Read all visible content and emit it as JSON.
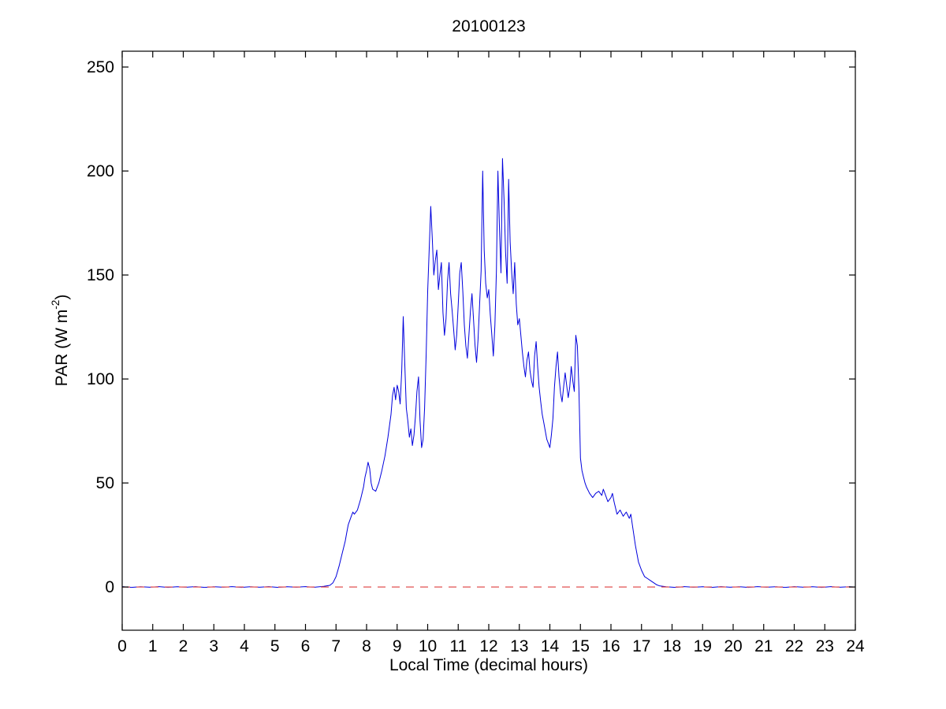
{
  "chart_data": {
    "type": "line",
    "title": "20100123",
    "xlabel": "Local Time (decimal hours)",
    "ylabel": "PAR (W m-2)",
    "ylabel_parts": {
      "pre": "PAR (W m",
      "sup": "-2",
      "post": ")"
    },
    "xlim": [
      0,
      24
    ],
    "ylim": [
      -20.8,
      257.6
    ],
    "x_ticks": [
      0,
      1,
      2,
      3,
      4,
      5,
      6,
      7,
      8,
      9,
      10,
      11,
      12,
      13,
      14,
      15,
      16,
      17,
      18,
      19,
      20,
      21,
      22,
      23,
      24
    ],
    "y_ticks": [
      0,
      50,
      100,
      150,
      200,
      250
    ],
    "grid": false,
    "legend": "none",
    "colors": {
      "par_line": "#0000dd",
      "zero_line": "#e05050",
      "axis": "#000000"
    },
    "series": [
      {
        "name": "PAR",
        "color": "#0000dd",
        "dashed": false,
        "width": 1,
        "points": [
          [
            0,
            0.2
          ],
          [
            0.3,
            -0.2
          ],
          [
            0.6,
            0.1
          ],
          [
            0.9,
            -0.1
          ],
          [
            1.2,
            0.2
          ],
          [
            1.5,
            -0.2
          ],
          [
            1.8,
            0.1
          ],
          [
            2.1,
            -0.1
          ],
          [
            2.4,
            0.2
          ],
          [
            2.7,
            -0.2
          ],
          [
            3,
            0.1
          ],
          [
            3.3,
            -0.1
          ],
          [
            3.6,
            0.2
          ],
          [
            3.9,
            -0.2
          ],
          [
            4.2,
            0.1
          ],
          [
            4.5,
            -0.1
          ],
          [
            4.8,
            0.2
          ],
          [
            5.1,
            -0.2
          ],
          [
            5.4,
            0.1
          ],
          [
            5.7,
            -0.1
          ],
          [
            6,
            0.2
          ],
          [
            6.3,
            -0.1
          ],
          [
            6.6,
            0.3
          ],
          [
            6.8,
            0.8
          ],
          [
            6.9,
            2
          ],
          [
            7,
            5
          ],
          [
            7.1,
            10
          ],
          [
            7.2,
            16
          ],
          [
            7.3,
            22
          ],
          [
            7.35,
            26
          ],
          [
            7.4,
            30
          ],
          [
            7.5,
            34
          ],
          [
            7.55,
            36
          ],
          [
            7.6,
            35
          ],
          [
            7.7,
            37
          ],
          [
            7.8,
            42
          ],
          [
            7.9,
            48
          ],
          [
            7.95,
            53
          ],
          [
            8,
            56
          ],
          [
            8.05,
            60
          ],
          [
            8.1,
            57
          ],
          [
            8.15,
            50
          ],
          [
            8.2,
            47
          ],
          [
            8.3,
            46
          ],
          [
            8.4,
            50
          ],
          [
            8.5,
            56
          ],
          [
            8.6,
            63
          ],
          [
            8.7,
            72
          ],
          [
            8.8,
            83
          ],
          [
            8.85,
            92
          ],
          [
            8.9,
            96
          ],
          [
            8.95,
            90
          ],
          [
            9,
            97
          ],
          [
            9.05,
            94
          ],
          [
            9.1,
            88
          ],
          [
            9.15,
            104
          ],
          [
            9.2,
            130
          ],
          [
            9.25,
            108
          ],
          [
            9.3,
            86
          ],
          [
            9.35,
            80
          ],
          [
            9.4,
            72
          ],
          [
            9.45,
            76
          ],
          [
            9.5,
            68
          ],
          [
            9.55,
            73
          ],
          [
            9.6,
            82
          ],
          [
            9.65,
            94
          ],
          [
            9.7,
            101
          ],
          [
            9.75,
            80
          ],
          [
            9.8,
            67
          ],
          [
            9.85,
            71
          ],
          [
            9.9,
            86
          ],
          [
            9.95,
            112
          ],
          [
            10,
            142
          ],
          [
            10.05,
            162
          ],
          [
            10.1,
            183
          ],
          [
            10.15,
            168
          ],
          [
            10.2,
            150
          ],
          [
            10.25,
            157
          ],
          [
            10.3,
            162
          ],
          [
            10.35,
            143
          ],
          [
            10.4,
            150
          ],
          [
            10.45,
            156
          ],
          [
            10.5,
            132
          ],
          [
            10.55,
            121
          ],
          [
            10.6,
            129
          ],
          [
            10.65,
            147
          ],
          [
            10.7,
            156
          ],
          [
            10.75,
            141
          ],
          [
            10.8,
            133
          ],
          [
            10.85,
            124
          ],
          [
            10.9,
            114
          ],
          [
            10.95,
            121
          ],
          [
            11,
            136
          ],
          [
            11.05,
            151
          ],
          [
            11.1,
            156
          ],
          [
            11.15,
            142
          ],
          [
            11.2,
            126
          ],
          [
            11.25,
            116
          ],
          [
            11.3,
            110
          ],
          [
            11.35,
            121
          ],
          [
            11.4,
            133
          ],
          [
            11.45,
            141
          ],
          [
            11.5,
            129
          ],
          [
            11.55,
            116
          ],
          [
            11.6,
            108
          ],
          [
            11.65,
            119
          ],
          [
            11.7,
            136
          ],
          [
            11.75,
            152
          ],
          [
            11.8,
            200
          ],
          [
            11.85,
            162
          ],
          [
            11.9,
            146
          ],
          [
            11.95,
            139
          ],
          [
            12,
            143
          ],
          [
            12.05,
            131
          ],
          [
            12.1,
            121
          ],
          [
            12.15,
            111
          ],
          [
            12.2,
            126
          ],
          [
            12.25,
            152
          ],
          [
            12.3,
            200
          ],
          [
            12.35,
            172
          ],
          [
            12.4,
            151
          ],
          [
            12.45,
            206
          ],
          [
            12.5,
            186
          ],
          [
            12.55,
            161
          ],
          [
            12.6,
            146
          ],
          [
            12.65,
            196
          ],
          [
            12.7,
            166
          ],
          [
            12.75,
            151
          ],
          [
            12.8,
            141
          ],
          [
            12.85,
            156
          ],
          [
            12.9,
            136
          ],
          [
            12.95,
            126
          ],
          [
            13,
            129
          ],
          [
            13.05,
            121
          ],
          [
            13.1,
            113
          ],
          [
            13.15,
            106
          ],
          [
            13.2,
            101
          ],
          [
            13.25,
            109
          ],
          [
            13.3,
            113
          ],
          [
            13.35,
            104
          ],
          [
            13.4,
            99
          ],
          [
            13.45,
            96
          ],
          [
            13.5,
            111
          ],
          [
            13.55,
            118
          ],
          [
            13.6,
            106
          ],
          [
            13.65,
            96
          ],
          [
            13.7,
            89
          ],
          [
            13.75,
            83
          ],
          [
            13.8,
            79
          ],
          [
            13.85,
            75
          ],
          [
            13.9,
            71
          ],
          [
            13.95,
            69
          ],
          [
            14,
            67
          ],
          [
            14.05,
            73
          ],
          [
            14.1,
            81
          ],
          [
            14.15,
            96
          ],
          [
            14.2,
            106
          ],
          [
            14.25,
            113
          ],
          [
            14.3,
            101
          ],
          [
            14.35,
            93
          ],
          [
            14.4,
            89
          ],
          [
            14.45,
            96
          ],
          [
            14.5,
            103
          ],
          [
            14.55,
            97
          ],
          [
            14.6,
            91
          ],
          [
            14.65,
            96
          ],
          [
            14.7,
            106
          ],
          [
            14.75,
            99
          ],
          [
            14.8,
            94
          ],
          [
            14.85,
            121
          ],
          [
            14.9,
            116
          ],
          [
            14.95,
            96
          ],
          [
            15,
            62
          ],
          [
            15.05,
            56
          ],
          [
            15.1,
            53
          ],
          [
            15.15,
            50
          ],
          [
            15.2,
            48
          ],
          [
            15.3,
            45
          ],
          [
            15.4,
            43
          ],
          [
            15.5,
            45
          ],
          [
            15.6,
            46
          ],
          [
            15.7,
            44
          ],
          [
            15.75,
            47
          ],
          [
            15.8,
            45
          ],
          [
            15.9,
            41
          ],
          [
            16,
            43
          ],
          [
            16.05,
            45
          ],
          [
            16.1,
            41
          ],
          [
            16.2,
            35
          ],
          [
            16.3,
            37
          ],
          [
            16.4,
            34
          ],
          [
            16.5,
            36
          ],
          [
            16.6,
            33
          ],
          [
            16.65,
            35
          ],
          [
            16.7,
            30
          ],
          [
            16.8,
            20
          ],
          [
            16.9,
            12
          ],
          [
            17,
            8
          ],
          [
            17.1,
            5
          ],
          [
            17.2,
            4
          ],
          [
            17.3,
            3
          ],
          [
            17.4,
            2
          ],
          [
            17.5,
            1
          ],
          [
            17.6,
            0.5
          ],
          [
            17.8,
            0.1
          ],
          [
            18.1,
            -0.2
          ],
          [
            18.4,
            0.2
          ],
          [
            18.7,
            -0.1
          ],
          [
            19,
            0.1
          ],
          [
            19.3,
            -0.2
          ],
          [
            19.6,
            0.2
          ],
          [
            19.9,
            -0.1
          ],
          [
            20.2,
            0.1
          ],
          [
            20.5,
            -0.2
          ],
          [
            20.8,
            0.2
          ],
          [
            21.1,
            -0.1
          ],
          [
            21.4,
            0.1
          ],
          [
            21.7,
            -0.2
          ],
          [
            22,
            0.2
          ],
          [
            22.3,
            -0.1
          ],
          [
            22.6,
            0.1
          ],
          [
            22.9,
            -0.2
          ],
          [
            23.2,
            0.2
          ],
          [
            23.5,
            -0.1
          ],
          [
            23.8,
            0.1
          ],
          [
            24,
            0
          ]
        ]
      },
      {
        "name": "zero reference",
        "color": "#e05050",
        "dashed": true,
        "width": 1.2,
        "points": [
          [
            0,
            0
          ],
          [
            24,
            0
          ]
        ]
      }
    ]
  }
}
